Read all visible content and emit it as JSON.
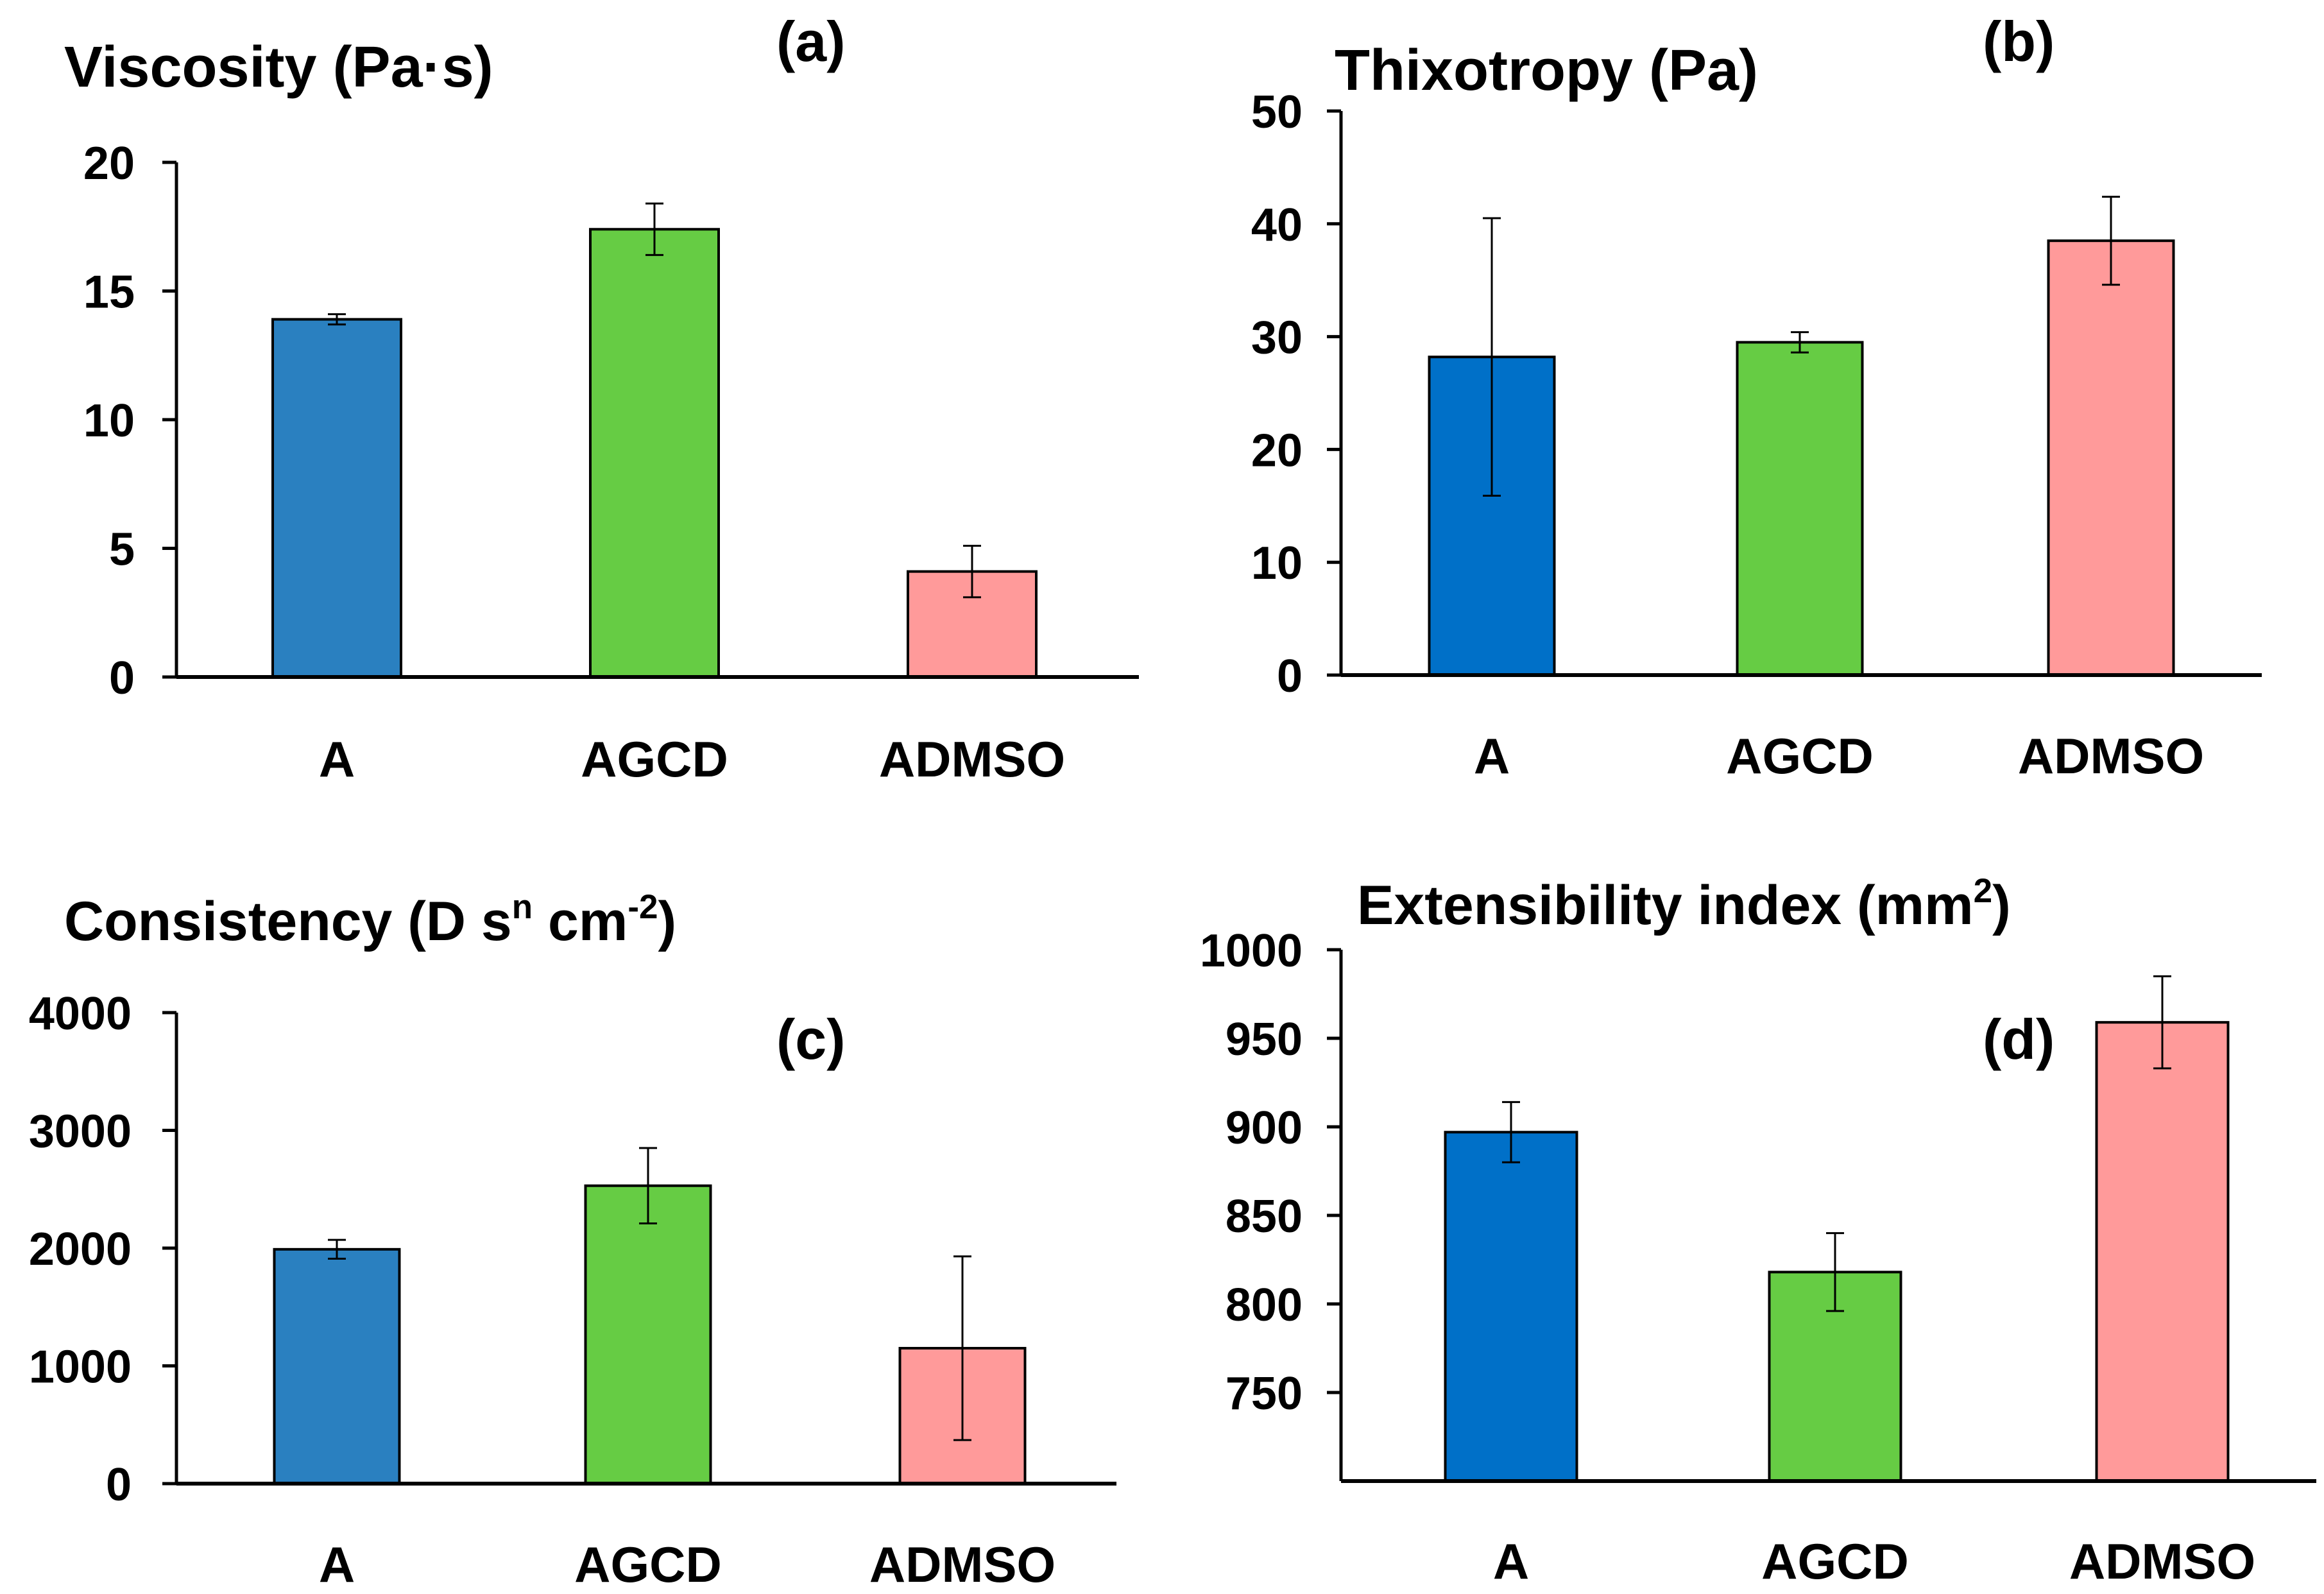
{
  "chart_data": [
    {
      "id": "a",
      "type": "bar",
      "panel_label": "(a)",
      "title": "Viscosity (Pa·s)",
      "title_parts": [
        {
          "t": "Viscosity (Pa·s)"
        }
      ],
      "categories": [
        "A",
        "AGCD",
        "ADMSO"
      ],
      "values": [
        13.9,
        17.4,
        4.1
      ],
      "errors": [
        0.2,
        1.0,
        1.0
      ],
      "colors": [
        "#2a80c0",
        "#66cc44",
        "#ff9a9a"
      ],
      "ylim": [
        0,
        20
      ],
      "yticks": [
        0,
        5,
        10,
        15,
        20
      ],
      "xlabel": "",
      "ylabel": ""
    },
    {
      "id": "b",
      "type": "bar",
      "panel_label": "(b)",
      "title": "Thixotropy (Pa)",
      "title_parts": [
        {
          "t": "Thixotropy (Pa)"
        }
      ],
      "categories": [
        "A",
        "AGCD",
        "ADMSO"
      ],
      "values": [
        28.2,
        29.5,
        38.5
      ],
      "errors": [
        12.3,
        0.9,
        3.9
      ],
      "colors": [
        "#0070c8",
        "#66cc44",
        "#ff9a9a"
      ],
      "ylim": [
        0,
        50
      ],
      "yticks": [
        0,
        10,
        20,
        30,
        40,
        50
      ],
      "xlabel": "",
      "ylabel": ""
    },
    {
      "id": "c",
      "type": "bar",
      "panel_label": "(c)",
      "title": "Consistency (D sⁿ cm⁻²)",
      "title_parts": [
        {
          "t": "Consistency (D s"
        },
        {
          "t": "n",
          "sup": true
        },
        {
          "t": " cm"
        },
        {
          "t": "-2",
          "sup": true
        },
        {
          "t": ")"
        }
      ],
      "categories": [
        "A",
        "AGCD",
        "ADMSO"
      ],
      "values": [
        1990,
        2530,
        1150
      ],
      "errors": [
        80,
        320,
        780
      ],
      "colors": [
        "#2a80c0",
        "#66cc44",
        "#ff9a9a"
      ],
      "ylim": [
        0,
        4000
      ],
      "yticks": [
        0,
        1000,
        2000,
        3000,
        4000
      ],
      "xlabel": "",
      "ylabel": ""
    },
    {
      "id": "d",
      "type": "bar",
      "panel_label": "(d)",
      "title": "Extensibility index (mm²)",
      "title_parts": [
        {
          "t": "Extensibility index (mm"
        },
        {
          "t": "2",
          "sup": true
        },
        {
          "t": ")"
        }
      ],
      "categories": [
        "A",
        "AGCD",
        "ADMSO"
      ],
      "values": [
        897,
        818,
        959
      ],
      "errors": [
        17,
        22,
        26
      ],
      "colors": [
        "#0070c8",
        "#66cc44",
        "#ff9a9a"
      ],
      "ylim": [
        700,
        1000
      ],
      "yticks": [
        750,
        800,
        850,
        900,
        950,
        1000
      ],
      "xlabel": "",
      "ylabel": ""
    }
  ]
}
